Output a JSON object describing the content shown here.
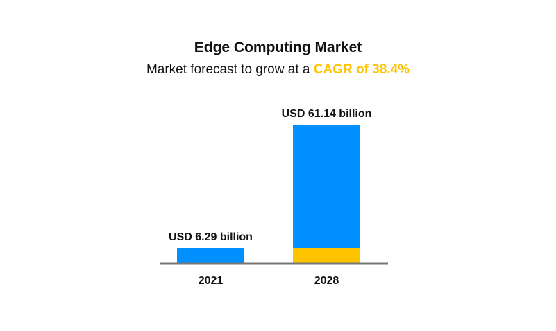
{
  "chart_data": {
    "type": "bar",
    "title": "Edge Computing Market",
    "subtitle_prefix": "Market forecast to grow at a ",
    "subtitle_highlight": "CAGR of 38.4%",
    "categories": [
      "2021",
      "2028"
    ],
    "values": [
      6.29,
      61.14
    ],
    "data_labels": [
      "USD 6.29 billion",
      "USD 61.14 billion"
    ],
    "base_segment_value": 6.29,
    "unit": "USD billion",
    "xlabel": "",
    "ylabel": "",
    "ylim": [
      0,
      61.14
    ],
    "grid": false,
    "colors": {
      "bar": "#0090FF",
      "base": "#FFC400",
      "axis": "#777777",
      "highlight": "#FFC400"
    }
  }
}
